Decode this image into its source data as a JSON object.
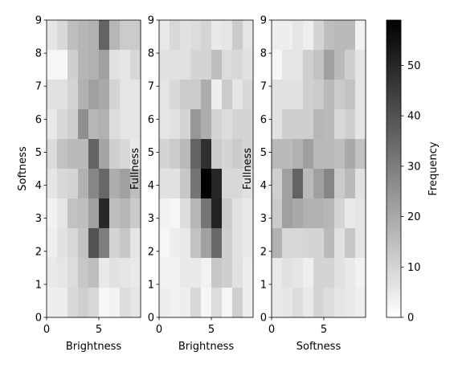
{
  "chart_data": [
    {
      "type": "heatmap",
      "xlabel": "Brightness",
      "ylabel": "Softness",
      "xlim": [
        0,
        9
      ],
      "ylim": [
        0,
        9
      ],
      "x_ticks": [
        "0",
        "5"
      ],
      "y_ticks": [
        "0",
        "1",
        "2",
        "3",
        "4",
        "5",
        "6",
        "7",
        "8",
        "9"
      ],
      "values": [
        [
          6,
          9,
          15,
          17,
          18,
          36,
          17,
          12,
          12
        ],
        [
          2,
          2,
          11,
          17,
          18,
          22,
          7,
          6,
          9
        ],
        [
          7,
          7,
          10,
          18,
          22,
          20,
          10,
          6,
          6
        ],
        [
          5,
          9,
          11,
          26,
          17,
          18,
          8,
          6,
          6
        ],
        [
          8,
          14,
          16,
          16,
          36,
          21,
          11,
          9,
          5
        ],
        [
          6,
          9,
          10,
          18,
          28,
          35,
          19,
          22,
          15
        ],
        [
          3,
          6,
          14,
          15,
          22,
          50,
          15,
          17,
          12
        ],
        [
          4,
          7,
          9,
          14,
          40,
          30,
          10,
          13,
          6
        ],
        [
          5,
          6,
          8,
          13,
          15,
          5,
          7,
          6,
          5
        ],
        [
          4,
          4,
          9,
          11,
          9,
          2,
          3,
          8,
          6
        ]
      ]
    },
    {
      "type": "heatmap",
      "xlabel": "Brightness",
      "ylabel": "Fullness",
      "xlim": [
        0,
        9
      ],
      "ylim": [
        0,
        9
      ],
      "x_ticks": [
        "0",
        "5"
      ],
      "y_ticks": [
        "0",
        "1",
        "2",
        "3",
        "4",
        "5",
        "6",
        "7",
        "8",
        "9"
      ],
      "values": [
        [
          5,
          9,
          7,
          8,
          10,
          5,
          6,
          12,
          6
        ],
        [
          7,
          7,
          7,
          10,
          10,
          15,
          8,
          9,
          7
        ],
        [
          6,
          9,
          12,
          12,
          19,
          4,
          12,
          6,
          9
        ],
        [
          6,
          7,
          10,
          24,
          19,
          10,
          8,
          10,
          10
        ],
        [
          10,
          12,
          16,
          36,
          48,
          12,
          10,
          12,
          10
        ],
        [
          7,
          7,
          13,
          32,
          59,
          50,
          9,
          9,
          7
        ],
        [
          3,
          2,
          8,
          17,
          32,
          51,
          12,
          7,
          5
        ],
        [
          2,
          4,
          5,
          14,
          22,
          35,
          11,
          7,
          5
        ],
        [
          3,
          3,
          5,
          5,
          3,
          13,
          11,
          7,
          4
        ],
        [
          4,
          3,
          4,
          9,
          2,
          8,
          2,
          11,
          4
        ]
      ]
    },
    {
      "type": "heatmap",
      "xlabel": "Softness",
      "ylabel": "Fullness",
      "xlim": [
        0,
        9
      ],
      "ylim": [
        0,
        9
      ],
      "x_ticks": [
        "0",
        "5"
      ],
      "y_ticks": [
        "0",
        "1",
        "2",
        "3",
        "4",
        "5",
        "6",
        "7",
        "8",
        "9"
      ],
      "values": [
        [
          4,
          4,
          6,
          4,
          10,
          15,
          16,
          16,
          3
        ],
        [
          2,
          6,
          6,
          11,
          14,
          22,
          16,
          11,
          6
        ],
        [
          7,
          7,
          7,
          11,
          12,
          16,
          12,
          14,
          6
        ],
        [
          7,
          11,
          11,
          11,
          17,
          16,
          9,
          11,
          6
        ],
        [
          16,
          16,
          18,
          22,
          16,
          16,
          15,
          20,
          14
        ],
        [
          11,
          22,
          36,
          16,
          22,
          28,
          12,
          16,
          7
        ],
        [
          12,
          22,
          20,
          18,
          18,
          17,
          10,
          5,
          6
        ],
        [
          18,
          9,
          9,
          10,
          10,
          16,
          7,
          13,
          6
        ],
        [
          5,
          7,
          6,
          4,
          10,
          10,
          7,
          5,
          3
        ],
        [
          5,
          6,
          8,
          5,
          10,
          8,
          6,
          5,
          4
        ]
      ]
    }
  ],
  "colorbar": {
    "label": "Frequency",
    "min": 0,
    "max": 59,
    "ticks": [
      "0",
      "10",
      "20",
      "30",
      "40",
      "50"
    ],
    "colormap": "Greys",
    "low_color": "#ffffff",
    "high_color": "#000000"
  }
}
